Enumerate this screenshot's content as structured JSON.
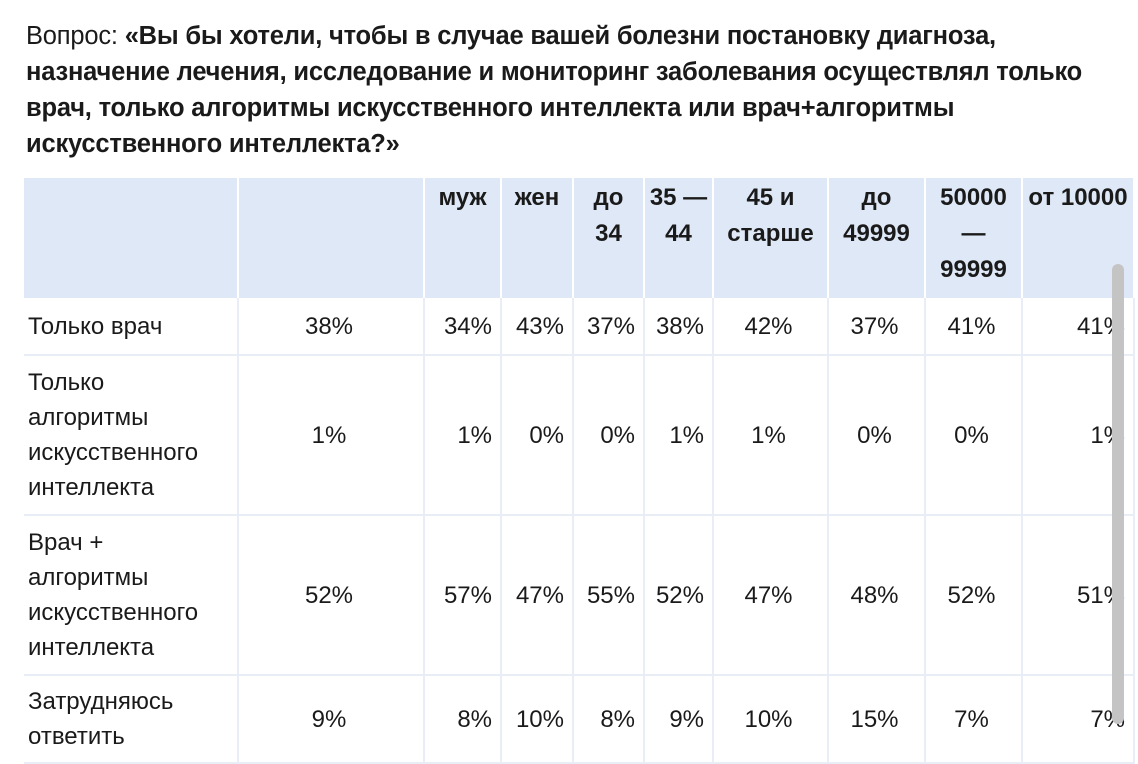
{
  "question": {
    "label": "Вопрос: ",
    "text": "«Вы бы хотели, чтобы в случае вашей болезни постановку диагноза, назначение лечения, исследование и мониторинг заболевания осуществлял только врач, только алгоритмы искусственного интеллекта или врач+алгоритмы искусственного интеллекта?»"
  },
  "table": {
    "headers": [
      "",
      "",
      "муж",
      "жен",
      "до 34",
      "35 — 44",
      "45 и старше",
      "до 49999",
      "50000 — 99999",
      "от 10000"
    ],
    "rows": [
      {
        "label": "Только врач",
        "values": [
          "38%",
          "34%",
          "43%",
          "37%",
          "38%",
          "42%",
          "37%",
          "41%",
          "41%"
        ]
      },
      {
        "label": "Только алгоритмы искусственного интеллекта",
        "values": [
          "1%",
          "1%",
          "0%",
          "0%",
          "1%",
          "1%",
          "0%",
          "0%",
          "1%"
        ]
      },
      {
        "label": "Врач + алгоритмы искусственного интеллекта",
        "values": [
          "52%",
          "57%",
          "47%",
          "55%",
          "52%",
          "47%",
          "48%",
          "52%",
          "51%"
        ]
      },
      {
        "label": "Затрудняюсь ответить",
        "values": [
          "9%",
          "8%",
          "10%",
          "8%",
          "9%",
          "10%",
          "15%",
          "7%",
          "7%"
        ]
      }
    ]
  },
  "colors": {
    "header_bg": "#dfe8f7",
    "grid": "#e9eef6",
    "scrollbar": "#c4c4c4"
  }
}
